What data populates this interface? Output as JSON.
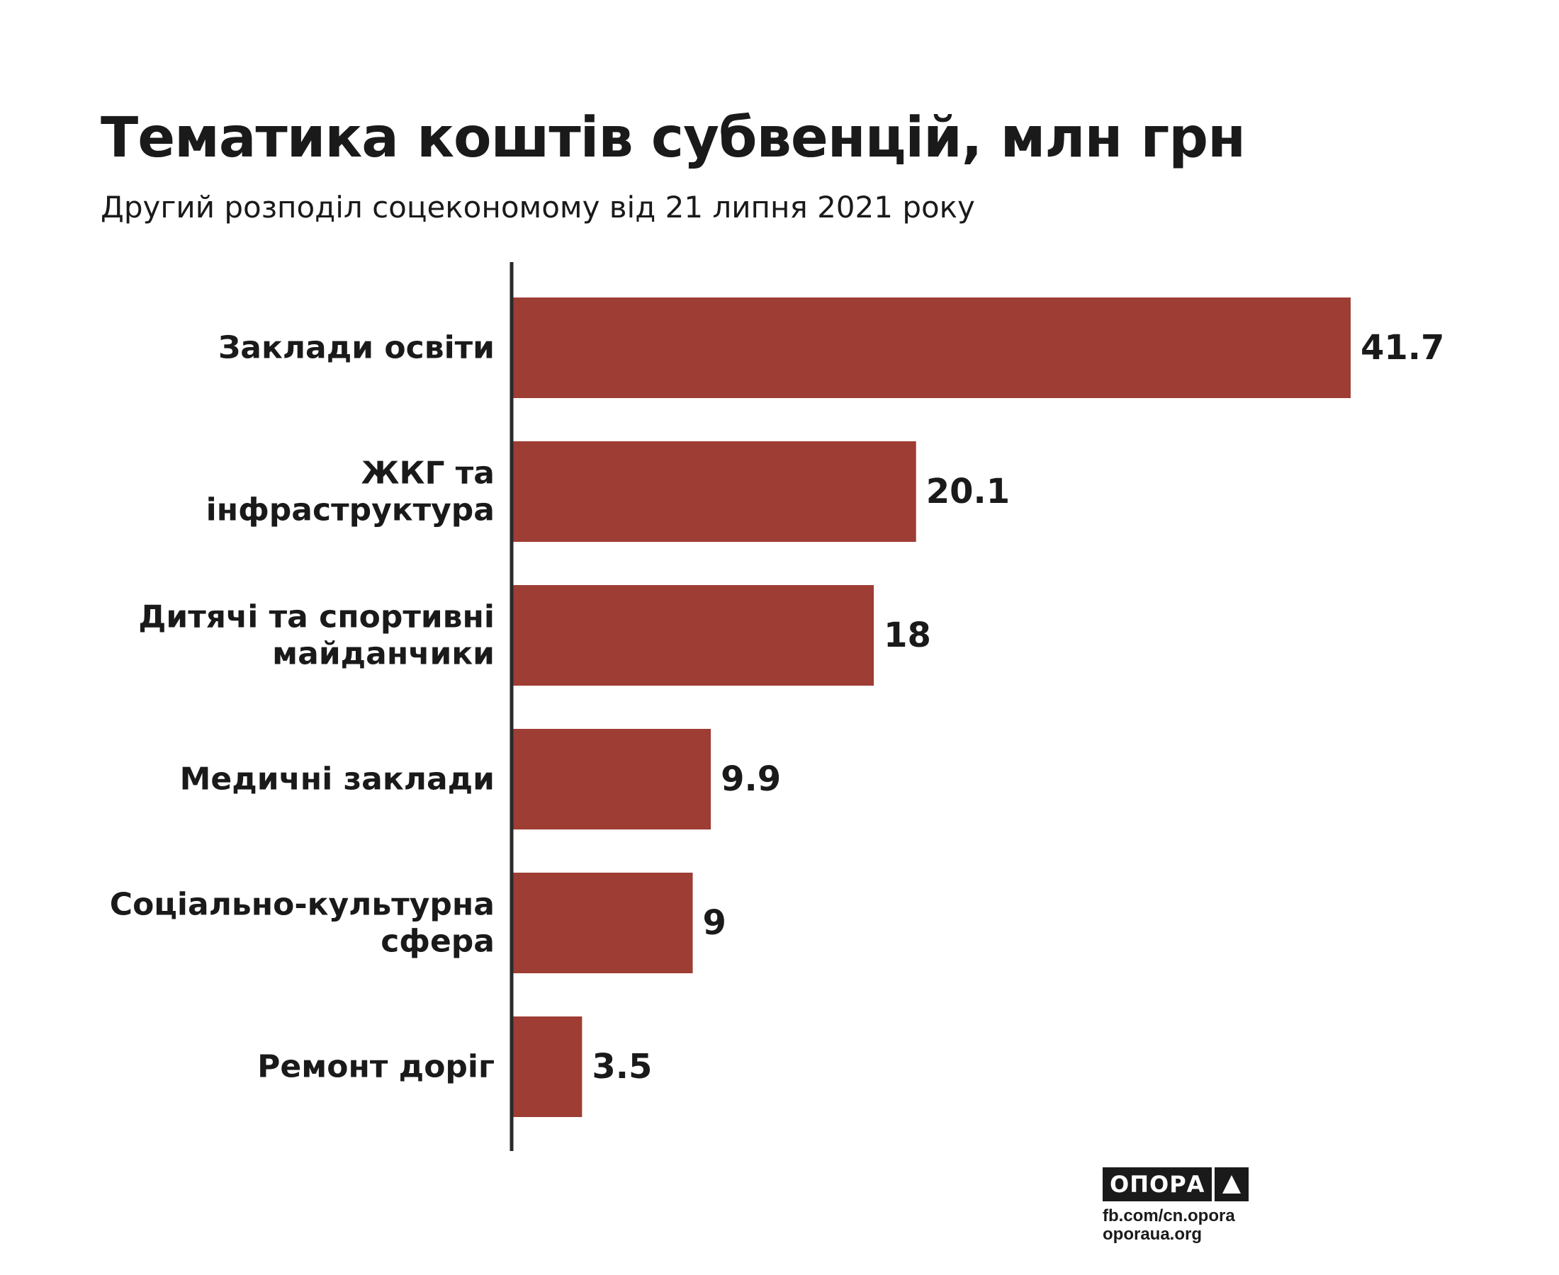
{
  "title": "Тематика коштів субвенцій, млн грн",
  "subtitle": "Другий розподіл соцекономому від 21 липня 2021 року",
  "colors": {
    "bar": "#9e3d34",
    "axis": "#2a2a2a",
    "text": "#1a1a1a"
  },
  "chart_data": {
    "type": "bar",
    "orientation": "horizontal",
    "categories": [
      [
        "Заклади освіти"
      ],
      [
        "ЖКГ та",
        "інфраструктура"
      ],
      [
        "Дитячі та спортивні",
        "майданчики"
      ],
      [
        "Медичні заклади"
      ],
      [
        "Соціально-культурна",
        "сфера"
      ],
      [
        "Ремонт доріг"
      ]
    ],
    "values": [
      41.7,
      20.1,
      18,
      9.9,
      9,
      3.5
    ],
    "value_labels": [
      "41.7",
      "20.1",
      "18",
      "9.9",
      "9",
      "3.5"
    ],
    "xlim": [
      0,
      41.7
    ],
    "grid": false,
    "legend": "none"
  },
  "footer": {
    "logo_text": "ОПОРА",
    "logo_icon": "triangle-up-icon",
    "links": [
      "fb.com/cn.opora",
      "oporaua.org"
    ]
  }
}
